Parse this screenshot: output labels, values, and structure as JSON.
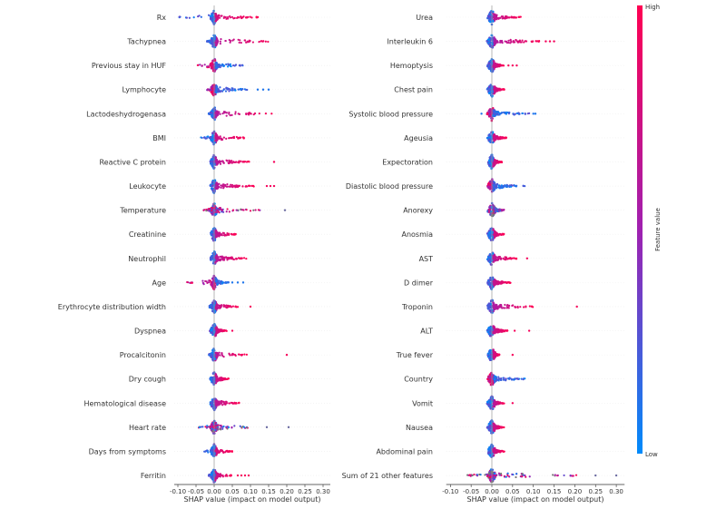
{
  "chart_data": [
    {
      "type": "scatter",
      "subtype": "shap-beeswarm",
      "xlabel": "SHAP value (impact on model output)",
      "xlim": [
        -0.11,
        0.32
      ],
      "xticks": [
        "-0.10",
        "-0.05",
        "0.00",
        "0.05",
        "0.10",
        "0.15",
        "0.20",
        "0.25",
        "0.30"
      ],
      "features": [
        {
          "name": "Rx",
          "min": -0.1,
          "max": 0.125,
          "high_effect": "positive",
          "outliers": []
        },
        {
          "name": "Tachypnea",
          "min": -0.02,
          "max": 0.17,
          "high_effect": "positive",
          "outliers": []
        },
        {
          "name": "Previous stay in HUF",
          "min": -0.055,
          "max": 0.08,
          "high_effect": "negative",
          "outliers": []
        },
        {
          "name": "Lymphocyte",
          "min": -0.02,
          "max": 0.1,
          "high_effect": "negative",
          "outliers": [
            0.12,
            0.135,
            0.15
          ]
        },
        {
          "name": "Lactodeshydrogenasa",
          "min": -0.015,
          "max": 0.165,
          "high_effect": "positive",
          "outliers": []
        },
        {
          "name": "BMI",
          "min": -0.04,
          "max": 0.09,
          "high_effect": "positive",
          "outliers": []
        },
        {
          "name": "Reactive C protein",
          "min": -0.01,
          "max": 0.1,
          "high_effect": "positive",
          "outliers": [
            0.165
          ]
        },
        {
          "name": "Leukocyte",
          "min": -0.01,
          "max": 0.11,
          "high_effect": "positive",
          "outliers": [
            0.145,
            0.155,
            0.165
          ]
        },
        {
          "name": "Temperature",
          "min": -0.03,
          "max": 0.13,
          "high_effect": "mixed",
          "outliers": [
            0.195
          ]
        },
        {
          "name": "Creatinine",
          "min": -0.01,
          "max": 0.06,
          "high_effect": "positive",
          "outliers": []
        },
        {
          "name": "Neutrophil",
          "min": -0.01,
          "max": 0.09,
          "high_effect": "positive",
          "outliers": []
        },
        {
          "name": "Age",
          "min": -0.08,
          "max": 0.04,
          "high_effect": "negative",
          "outliers": [
            0.05,
            0.065,
            0.08
          ]
        },
        {
          "name": "Erythrocyte distribution width",
          "min": -0.015,
          "max": 0.065,
          "high_effect": "positive",
          "outliers": [
            0.1
          ]
        },
        {
          "name": "Dyspnea",
          "min": -0.01,
          "max": 0.035,
          "high_effect": "positive",
          "outliers": [
            0.05
          ]
        },
        {
          "name": "Procalcitonin",
          "min": -0.015,
          "max": 0.09,
          "high_effect": "positive",
          "outliers": [
            0.2
          ]
        },
        {
          "name": "Dry cough",
          "min": -0.01,
          "max": 0.04,
          "high_effect": "positive",
          "outliers": []
        },
        {
          "name": "Hematological disease",
          "min": -0.01,
          "max": 0.07,
          "high_effect": "positive",
          "outliers": []
        },
        {
          "name": "Heart rate",
          "min": -0.045,
          "max": 0.125,
          "high_effect": "mixed",
          "outliers": [
            0.145,
            0.205
          ]
        },
        {
          "name": "Days from symptoms",
          "min": -0.03,
          "max": 0.05,
          "high_effect": "positive",
          "outliers": []
        },
        {
          "name": "Ferritin",
          "min": -0.015,
          "max": 0.05,
          "high_effect": "positive",
          "outliers": [
            0.065,
            0.075,
            0.085,
            0.095
          ]
        }
      ]
    },
    {
      "type": "scatter",
      "subtype": "shap-beeswarm",
      "xlabel": "SHAP value (impact on model output)",
      "xlim": [
        -0.11,
        0.32
      ],
      "xticks": [
        "-0.10",
        "-0.05",
        "0.00",
        "0.05",
        "0.10",
        "0.15",
        "0.20",
        "0.25",
        "0.30"
      ],
      "features": [
        {
          "name": "Urea",
          "min": -0.01,
          "max": 0.07,
          "high_effect": "positive",
          "outliers": []
        },
        {
          "name": "Interleukin 6",
          "min": 0.0,
          "max": 0.12,
          "high_effect": "positive",
          "outliers": [
            0.13,
            0.14,
            0.15
          ]
        },
        {
          "name": "Hemoptysis",
          "min": -0.005,
          "max": 0.03,
          "high_effect": "positive",
          "outliers": [
            0.04,
            0.05,
            0.06
          ]
        },
        {
          "name": "Chest pain",
          "min": -0.005,
          "max": 0.03,
          "high_effect": "positive",
          "outliers": []
        },
        {
          "name": "Systolic blood pressure",
          "min": -0.01,
          "max": 0.09,
          "high_effect": "negative",
          "outliers": [
            -0.025,
            0.1,
            0.105
          ]
        },
        {
          "name": "Ageusia",
          "min": -0.01,
          "max": 0.035,
          "high_effect": "positive",
          "outliers": []
        },
        {
          "name": "Expectoration",
          "min": -0.005,
          "max": 0.025,
          "high_effect": "positive",
          "outliers": []
        },
        {
          "name": "Diastolic blood pressure",
          "min": -0.01,
          "max": 0.08,
          "high_effect": "negative",
          "outliers": []
        },
        {
          "name": "Anorexy",
          "min": -0.01,
          "max": 0.03,
          "high_effect": "mixed",
          "outliers": []
        },
        {
          "name": "Anosmia",
          "min": -0.01,
          "max": 0.03,
          "high_effect": "positive",
          "outliers": []
        },
        {
          "name": "AST",
          "min": -0.01,
          "max": 0.06,
          "high_effect": "positive",
          "outliers": [
            0.085
          ]
        },
        {
          "name": "D dimer",
          "min": -0.01,
          "max": 0.045,
          "high_effect": "positive",
          "outliers": []
        },
        {
          "name": "Troponin",
          "min": 0.0,
          "max": 0.1,
          "high_effect": "positive",
          "outliers": [
            0.205
          ]
        },
        {
          "name": "ALT",
          "min": -0.01,
          "max": 0.04,
          "high_effect": "positive",
          "outliers": [
            0.055,
            0.09
          ]
        },
        {
          "name": "True fever",
          "min": -0.005,
          "max": 0.02,
          "high_effect": "positive",
          "outliers": [
            0.05
          ]
        },
        {
          "name": "Country",
          "min": -0.005,
          "max": 0.08,
          "high_effect": "negative",
          "outliers": []
        },
        {
          "name": "Vomit",
          "min": 0.0,
          "max": 0.03,
          "high_effect": "positive",
          "outliers": [
            0.05
          ]
        },
        {
          "name": "Nausea",
          "min": -0.005,
          "max": 0.03,
          "high_effect": "positive",
          "outliers": []
        },
        {
          "name": "Abdominal pain",
          "min": -0.005,
          "max": 0.03,
          "high_effect": "positive",
          "outliers": []
        },
        {
          "name": "Sum of 21 other features",
          "min": -0.07,
          "max": 0.21,
          "high_effect": "mixed",
          "outliers": [
            0.25,
            0.3
          ]
        }
      ]
    }
  ],
  "colorbar": {
    "label": "Feature value",
    "high": "High",
    "low": "Low",
    "color_low": "#008bfb",
    "color_high": "#ff0052",
    "color_missing": "#777777"
  }
}
